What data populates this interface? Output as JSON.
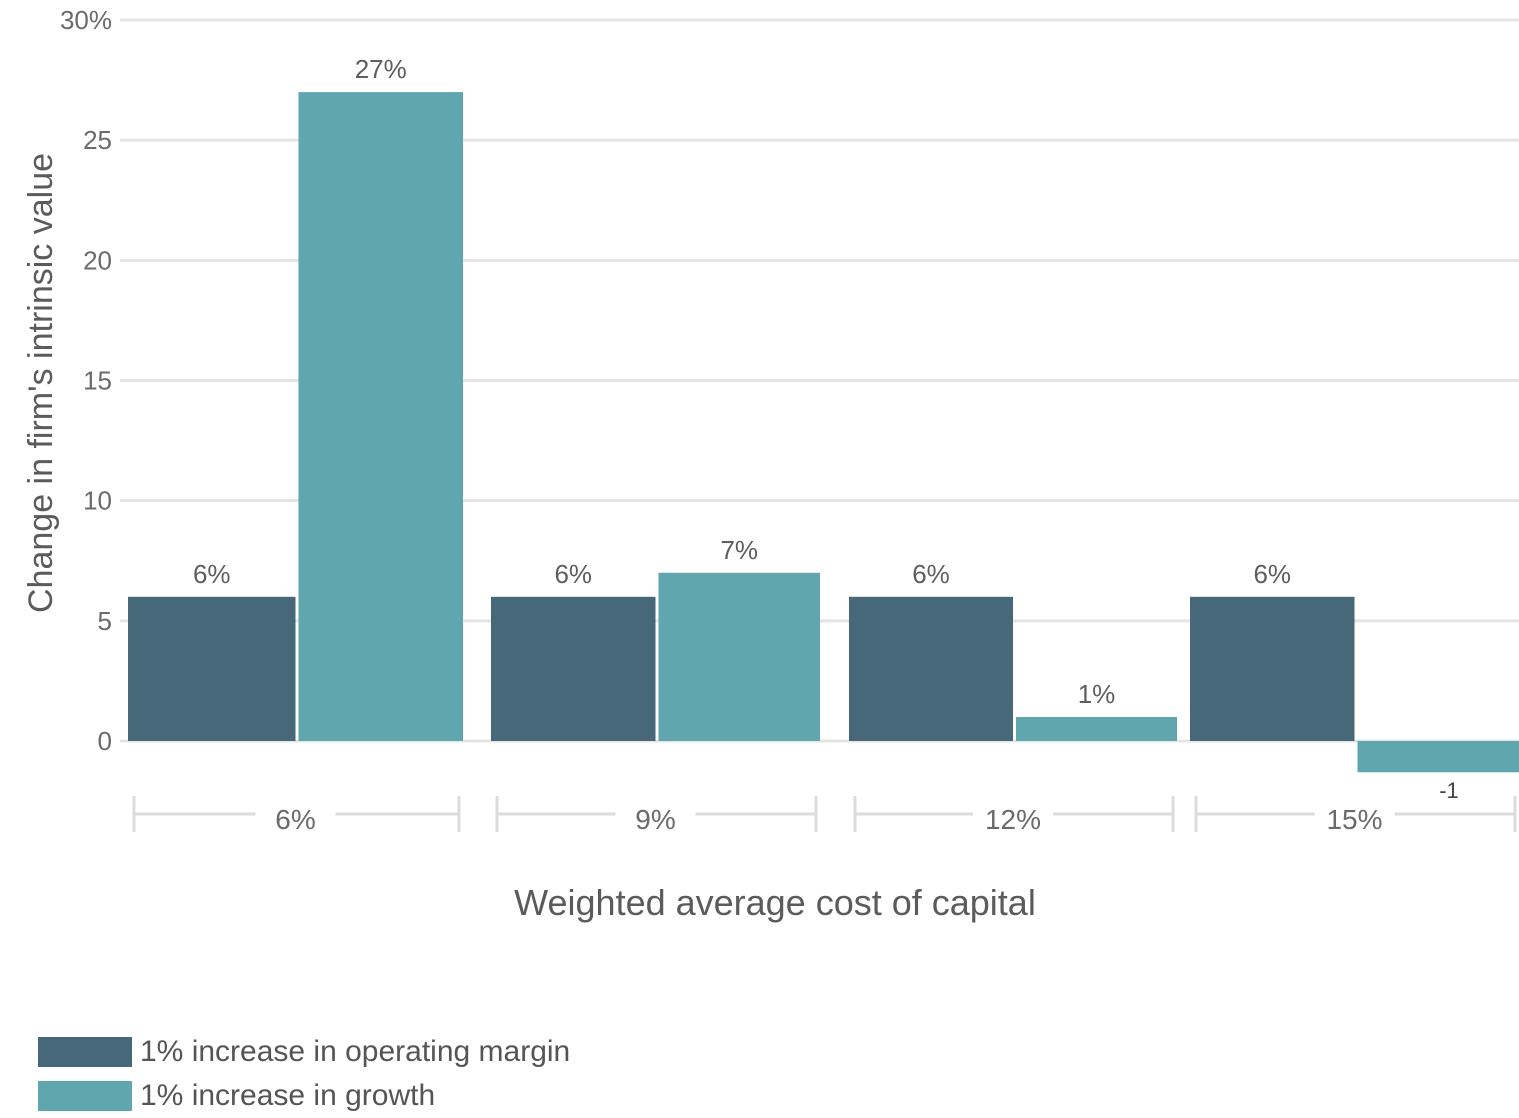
{
  "chart_data": {
    "type": "bar",
    "categories": [
      "6%",
      "9%",
      "12%",
      "15%"
    ],
    "xlabel": "Weighted average cost of capital",
    "ylabel": "Change in firm's intrinsic value",
    "ylim": [
      -1.5,
      30
    ],
    "yticks": [
      {
        "value": 30,
        "label": "30%"
      },
      {
        "value": 25,
        "label": "25"
      },
      {
        "value": 20,
        "label": "20"
      },
      {
        "value": 15,
        "label": "15"
      },
      {
        "value": 10,
        "label": "10"
      },
      {
        "value": 5,
        "label": "5"
      },
      {
        "value": 0,
        "label": "0"
      }
    ],
    "grid": true,
    "legend_position": "bottom-left",
    "series": [
      {
        "name": "1% increase in operating margin",
        "color": "#476878",
        "values": [
          6,
          6,
          6,
          6
        ],
        "labels": [
          "6%",
          "6%",
          "6%",
          "6%"
        ]
      },
      {
        "name": "1% increase in growth",
        "color": "#5fa6ae",
        "values": [
          27,
          7,
          1,
          -1.3
        ],
        "labels": [
          "27%",
          "7%",
          "1%",
          "-1"
        ]
      }
    ]
  }
}
